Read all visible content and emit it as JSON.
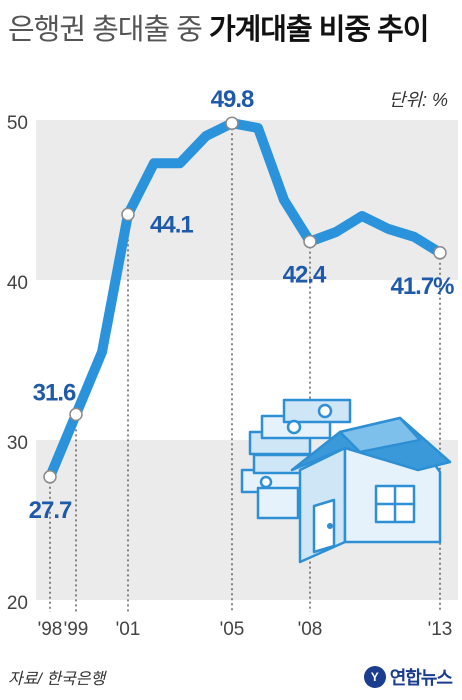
{
  "header": {
    "title_light": "은행권 총대출 중",
    "title_bold": "가계대출 비중 추이",
    "unit": "단위: %"
  },
  "footer": {
    "source": "자료/ 한국은행",
    "logo_text": "연합뉴스"
  },
  "colors": {
    "line": "#2a93dc",
    "point_fill": "#ffffff",
    "label": "#1f5aa8",
    "band_shaded": "#ebebeb",
    "house": "#3a9ad9"
  },
  "chart_data": {
    "type": "line",
    "title": "은행권 총대출 중 가계대출 비중 추이",
    "unit": "%",
    "ylim": [
      20,
      52
    ],
    "yticks": [
      20,
      30,
      40,
      50
    ],
    "x": [
      1998,
      1999,
      2000,
      2001,
      2002,
      2003,
      2004,
      2005,
      2006,
      2007,
      2008,
      2009,
      2010,
      2011,
      2012,
      2013
    ],
    "x_tick_labels": [
      {
        "x": 1998,
        "label": "'98"
      },
      {
        "x": 1999,
        "label": "'99"
      },
      {
        "x": 2001,
        "label": "'01"
      },
      {
        "x": 2005,
        "label": "'05"
      },
      {
        "x": 2008,
        "label": "'08"
      },
      {
        "x": 2013,
        "label": "'13"
      }
    ],
    "series": [
      {
        "values": [
          27.7,
          31.6,
          35.5,
          44.1,
          47.3,
          47.3,
          49.0,
          49.8,
          49.5,
          45.0,
          42.4,
          43.0,
          44.0,
          43.2,
          42.7,
          41.7
        ]
      }
    ],
    "data_labels": [
      {
        "x": 1998,
        "text": "27.7"
      },
      {
        "x": 1999,
        "text": "31.6"
      },
      {
        "x": 2001,
        "text": "44.1"
      },
      {
        "x": 2005,
        "text": "49.8"
      },
      {
        "x": 2008,
        "text": "42.4"
      },
      {
        "x": 2013,
        "text": "41.7%"
      }
    ],
    "grid": "alternating horizontal bands",
    "legend": "none"
  }
}
